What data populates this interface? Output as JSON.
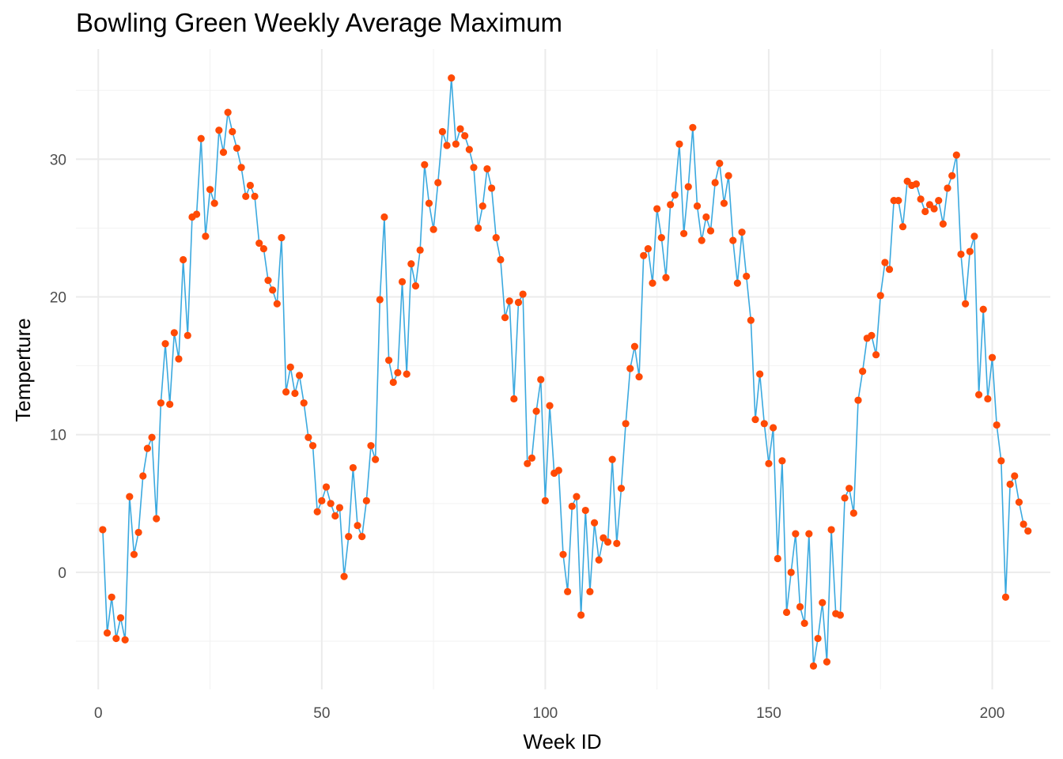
{
  "chart_data": {
    "type": "line",
    "title": "Bowling Green Weekly Average Maximum",
    "xlabel": "Week ID",
    "ylabel": "Temperture",
    "xlim": [
      -5,
      213
    ],
    "ylim": [
      -8.5,
      38
    ],
    "x_ticks": [
      0,
      50,
      100,
      150,
      200
    ],
    "y_ticks": [
      0,
      10,
      20,
      30
    ],
    "grid": true,
    "line_color": "#3ba9df",
    "point_color": "#ff4a05",
    "series": [
      {
        "values": [
          3.1,
          -4.4,
          -1.8,
          -4.8,
          -3.3,
          -4.9,
          5.5,
          1.3,
          2.9,
          7.0,
          9.0,
          9.8,
          3.9,
          12.3,
          16.6,
          12.2,
          17.4,
          15.5,
          22.7,
          17.2,
          25.8,
          26.0,
          31.5,
          24.4,
          27.8,
          26.8,
          32.1,
          30.5,
          33.4,
          32.0,
          30.8,
          29.4,
          27.3,
          28.1,
          27.3,
          23.9,
          23.5,
          21.2,
          20.5,
          19.5,
          24.3,
          13.1,
          14.9,
          13.0,
          14.3,
          12.3,
          9.8,
          9.2,
          4.4,
          5.2,
          6.2,
          5.0,
          4.1,
          4.7,
          -0.3,
          2.6,
          7.6,
          3.4,
          2.6,
          5.2,
          9.2,
          8.2,
          19.8,
          25.8,
          15.4,
          13.8,
          14.5,
          21.1,
          14.4,
          22.4,
          20.8,
          23.4,
          29.6,
          26.8,
          24.9,
          28.3,
          32.0,
          31.0,
          35.9,
          31.1,
          32.2,
          31.7,
          30.7,
          29.4,
          25.0,
          26.6,
          29.3,
          27.9,
          24.3,
          22.7,
          18.5,
          19.7,
          12.6,
          19.6,
          20.2,
          7.9,
          8.3,
          11.7,
          14.0,
          5.2,
          12.1,
          7.2,
          7.4,
          1.3,
          -1.4,
          4.8,
          5.5,
          -3.1,
          4.5,
          -1.4,
          3.6,
          0.9,
          2.5,
          2.2,
          8.2,
          2.1,
          6.1,
          10.8,
          14.8,
          16.4,
          14.2,
          23.0,
          23.5,
          21.0,
          26.4,
          24.3,
          21.4,
          26.7,
          27.4,
          31.1,
          24.6,
          28.0,
          32.3,
          26.6,
          24.1,
          25.8,
          24.8,
          28.3,
          29.7,
          26.8,
          28.8,
          24.1,
          21.0,
          24.7,
          21.5,
          18.3,
          11.1,
          14.4,
          10.8,
          7.9,
          10.5,
          1.0,
          8.1,
          -2.9,
          0.0,
          2.8,
          -2.5,
          -3.7,
          2.8,
          -6.8,
          -4.8,
          -2.2,
          -6.5,
          3.1,
          -3.0,
          -3.1,
          5.4,
          6.1,
          4.3,
          12.5,
          14.6,
          17.0,
          17.2,
          15.8,
          20.1,
          22.5,
          22.0,
          27.0,
          27.0,
          25.1,
          28.4,
          28.1,
          28.2,
          27.1,
          26.2,
          26.7,
          26.4,
          27.0,
          25.3,
          27.9,
          28.8,
          30.3,
          23.1,
          19.5,
          23.3,
          24.4,
          12.9,
          19.1,
          12.6,
          15.6,
          10.7,
          8.1,
          -1.8,
          6.4,
          7.0,
          5.1,
          3.5,
          3.0
        ]
      }
    ]
  }
}
